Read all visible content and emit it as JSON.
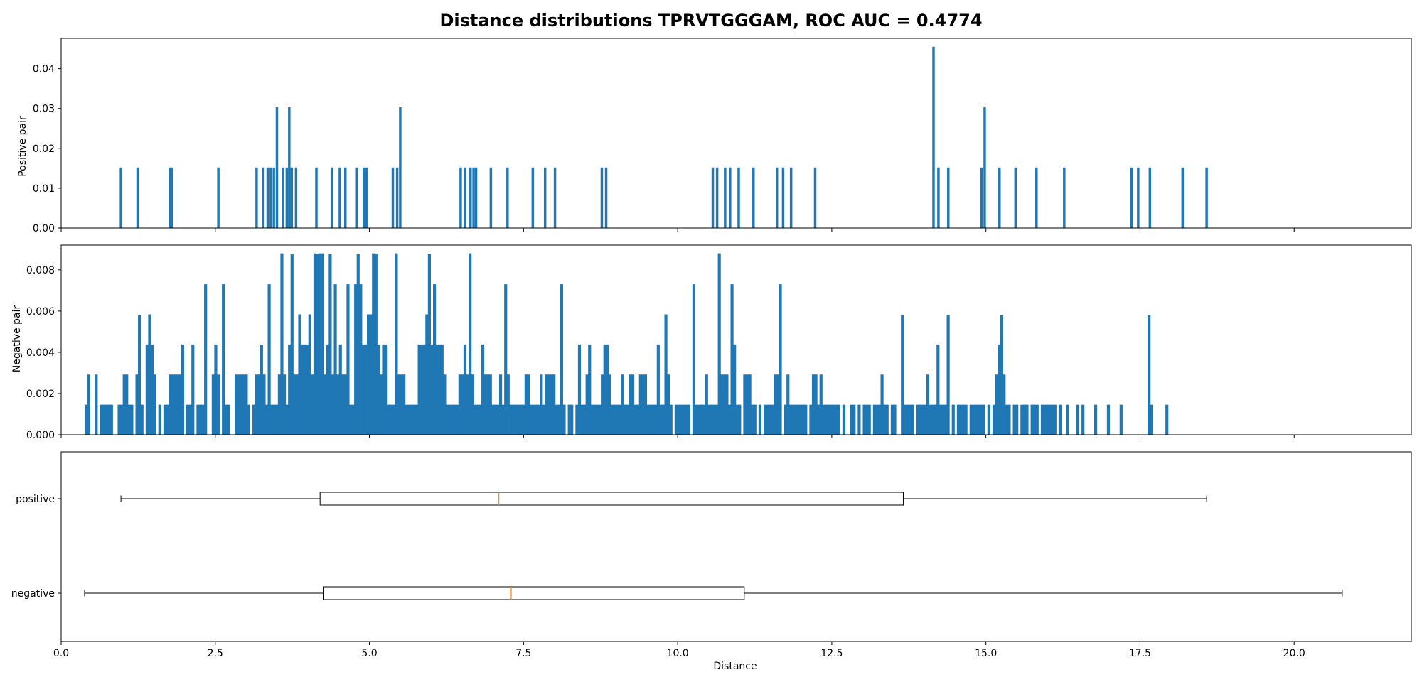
{
  "chart_data": [
    {
      "type": "bar",
      "panel": "positive-histogram",
      "title": "Distance distributions TPRVTGGGAM, ROC AUC = 0.4774",
      "ylabel": "Positive pair",
      "xlim": [
        0,
        21.9
      ],
      "ylim": [
        0,
        0.0476
      ],
      "yticks": [
        0.0,
        0.01,
        0.02,
        0.03,
        0.04
      ],
      "ytick_labels": [
        "0.00",
        "0.01",
        "0.02",
        "0.03",
        "0.04"
      ],
      "color": "#1f77b4",
      "bin_width": 0.04,
      "x": [
        0.97,
        1.24,
        1.77,
        1.8,
        2.55,
        3.17,
        3.28,
        3.35,
        3.4,
        3.45,
        3.5,
        3.6,
        3.66,
        3.7,
        3.74,
        3.81,
        4.14,
        4.39,
        4.52,
        4.61,
        4.8,
        4.91,
        4.95,
        5.38,
        5.45,
        5.5,
        6.48,
        6.55,
        6.64,
        6.69,
        6.73,
        6.97,
        7.24,
        7.65,
        7.85,
        8.01,
        8.77,
        8.84,
        10.57,
        10.64,
        10.77,
        10.85,
        10.99,
        11.23,
        11.61,
        11.71,
        11.84,
        12.23,
        14.15,
        14.23,
        14.39,
        14.93,
        14.98,
        15.22,
        15.48,
        15.82,
        16.27,
        17.36,
        17.47,
        17.66,
        18.19,
        18.58
      ],
      "values": [
        0.0152,
        0.0152,
        0.0152,
        0.0152,
        0.0152,
        0.0152,
        0.0152,
        0.0152,
        0.0152,
        0.0152,
        0.0303,
        0.0152,
        0.0152,
        0.0303,
        0.0152,
        0.0152,
        0.0152,
        0.0152,
        0.0152,
        0.0152,
        0.0152,
        0.0152,
        0.0152,
        0.0152,
        0.0152,
        0.0303,
        0.0152,
        0.0152,
        0.0152,
        0.0152,
        0.0152,
        0.0152,
        0.0152,
        0.0152,
        0.0152,
        0.0152,
        0.0152,
        0.0152,
        0.0152,
        0.0152,
        0.0152,
        0.0152,
        0.0152,
        0.0152,
        0.0152,
        0.0152,
        0.0152,
        0.0152,
        0.0455,
        0.0152,
        0.0152,
        0.0152,
        0.0303,
        0.0152,
        0.0152,
        0.0152,
        0.0152,
        0.0152,
        0.0152,
        0.0152,
        0.0152,
        0.0152
      ]
    },
    {
      "type": "bar",
      "panel": "negative-histogram",
      "ylabel": "Negative pair",
      "xlim": [
        0,
        21.9
      ],
      "ylim": [
        0,
        0.0092
      ],
      "yticks": [
        0.0,
        0.002,
        0.004,
        0.006,
        0.008
      ],
      "ytick_labels": [
        "0.000",
        "0.002",
        "0.004",
        "0.006",
        "0.008"
      ],
      "color": "#1f77b4",
      "x_start": 0.38,
      "bin_width": 0.04125,
      "values_unit": 0.00146,
      "values": [
        1,
        2,
        0,
        0,
        2,
        0,
        1,
        1,
        1,
        1,
        1,
        0,
        0,
        1,
        1,
        2,
        2,
        1,
        1,
        0,
        2,
        1,
        1,
        0,
        3,
        4,
        3,
        2,
        0,
        1,
        0,
        1,
        1,
        2,
        2,
        2,
        2,
        2,
        3,
        0,
        1,
        1,
        3,
        0,
        1,
        1,
        1,
        1,
        0,
        0,
        2,
        3,
        2,
        0,
        5,
        1,
        1,
        0,
        0,
        2,
        2,
        2,
        2,
        2,
        1,
        0,
        1,
        2,
        2,
        3,
        2,
        1,
        1,
        1,
        1,
        1,
        2,
        1,
        2,
        1,
        3,
        6,
        2,
        2,
        4,
        3,
        3,
        3,
        4,
        2,
        2,
        6,
        3,
        3,
        2,
        3,
        6,
        2,
        2,
        2,
        3,
        2,
        2,
        1,
        1,
        1,
        5,
        6,
        6,
        3,
        3,
        4,
        4,
        6,
        6,
        3,
        2,
        3,
        3,
        1,
        1,
        1,
        1,
        2,
        2,
        2,
        1,
        1,
        1,
        1,
        1,
        3,
        3,
        3,
        4,
        6,
        3,
        5,
        3,
        3,
        3,
        2,
        1,
        1,
        1,
        1,
        1,
        2,
        2,
        3,
        2,
        3,
        2,
        1,
        1,
        1,
        3,
        2,
        2,
        2,
        1,
        1,
        1,
        2,
        1,
        2,
        2,
        1,
        1,
        1,
        1,
        1,
        1,
        2,
        2,
        1,
        1,
        1,
        1,
        2,
        1,
        2,
        2,
        2,
        2,
        1,
        1,
        3,
        1,
        0,
        1,
        1,
        0,
        1,
        3,
        1,
        1,
        2,
        3,
        1,
        1,
        1,
        1,
        2,
        3,
        3,
        2,
        1,
        1,
        1,
        1,
        2,
        1,
        1,
        2,
        2,
        1,
        1,
        2,
        2,
        2,
        1,
        1,
        1,
        1,
        3,
        1,
        1,
        4,
        2,
        1,
        0,
        1,
        1,
        1,
        1,
        1,
        1,
        0,
        1,
        1,
        1,
        1,
        1,
        2,
        1,
        1,
        1,
        1,
        1,
        2,
        2,
        2,
        1,
        0,
        3,
        1,
        1,
        0,
        2,
        2,
        2,
        1,
        1,
        0,
        1,
        0,
        1,
        1,
        1,
        1,
        2,
        2,
        1,
        0,
        1,
        2,
        1,
        1,
        1,
        1,
        1,
        1,
        1,
        0,
        1,
        2,
        2,
        1,
        2,
        1,
        1,
        1,
        1,
        1,
        1,
        1,
        0,
        1,
        0,
        0,
        1,
        1,
        0,
        1,
        0,
        1,
        1,
        1,
        0,
        1,
        1,
        1,
        2,
        1,
        1,
        0,
        1,
        1,
        0,
        0,
        1,
        1,
        1,
        1,
        1,
        0,
        1,
        1,
        1,
        1,
        2,
        1,
        1,
        1,
        3,
        1,
        1,
        1,
        1,
        0,
        1,
        0,
        1,
        1,
        1,
        1,
        0,
        1,
        1,
        1,
        1,
        1,
        1,
        0,
        1,
        0,
        1,
        2,
        3,
        2,
        2,
        1,
        1,
        0,
        1,
        1,
        0,
        1,
        1,
        1,
        0,
        1,
        1,
        1,
        0,
        1,
        1,
        1,
        1,
        1,
        1,
        0,
        1,
        0,
        0,
        1,
        0,
        0,
        0,
        1,
        0,
        1,
        0,
        0,
        0,
        0,
        1,
        0,
        0,
        0,
        0,
        1,
        0,
        0,
        0,
        0,
        1,
        0,
        0,
        0,
        0,
        0,
        0,
        0,
        0,
        0,
        0,
        1,
        1,
        0,
        0,
        0,
        0,
        0,
        1
      ],
      "peak_bins": [
        {
          "x": 3.57,
          "value": 0.0088
        },
        {
          "x": 4.1,
          "value": 0.0088
        },
        {
          "x": 4.16,
          "value": 0.0088
        },
        {
          "x": 4.22,
          "value": 0.0088
        },
        {
          "x": 5.06,
          "value": 0.0088
        },
        {
          "x": 5.4,
          "value": 0.0088
        },
        {
          "x": 6.61,
          "value": 0.0088
        },
        {
          "x": 10.66,
          "value": 0.0088
        },
        {
          "x": 2.3,
          "value": 0.0073
        },
        {
          "x": 3.34,
          "value": 0.0073
        },
        {
          "x": 4.41,
          "value": 0.0073
        },
        {
          "x": 4.64,
          "value": 0.0073
        },
        {
          "x": 4.84,
          "value": 0.0073
        },
        {
          "x": 6.03,
          "value": 0.0073
        },
        {
          "x": 7.19,
          "value": 0.0073
        },
        {
          "x": 8.08,
          "value": 0.0073
        },
        {
          "x": 10.24,
          "value": 0.0073
        },
        {
          "x": 10.87,
          "value": 0.0073
        },
        {
          "x": 11.64,
          "value": 0.0073
        },
        {
          "x": 1.25,
          "value": 0.0058
        },
        {
          "x": 14.35,
          "value": 0.0058
        },
        {
          "x": 15.22,
          "value": 0.0058
        },
        {
          "x": 17.64,
          "value": 0.0058
        },
        {
          "x": 13.62,
          "value": 0.0058
        }
      ]
    },
    {
      "type": "boxplot",
      "panel": "boxplots",
      "xlabel": "Distance",
      "xlim": [
        0,
        21.9
      ],
      "xticks": [
        0.0,
        2.5,
        5.0,
        7.5,
        10.0,
        12.5,
        15.0,
        17.5,
        20.0
      ],
      "xtick_labels": [
        "0.0",
        "2.5",
        "5.0",
        "7.5",
        "10.0",
        "12.5",
        "15.0",
        "17.5",
        "20.0"
      ],
      "median_color": "#ff7f0e",
      "series": [
        {
          "name": "positive",
          "whisker_low": 0.97,
          "q1": 4.2,
          "median": 7.1,
          "q3": 13.66,
          "whisker_high": 18.58
        },
        {
          "name": "negative",
          "whisker_low": 0.38,
          "q1": 4.25,
          "median": 7.3,
          "q3": 11.08,
          "whisker_high": 20.78
        }
      ]
    }
  ]
}
